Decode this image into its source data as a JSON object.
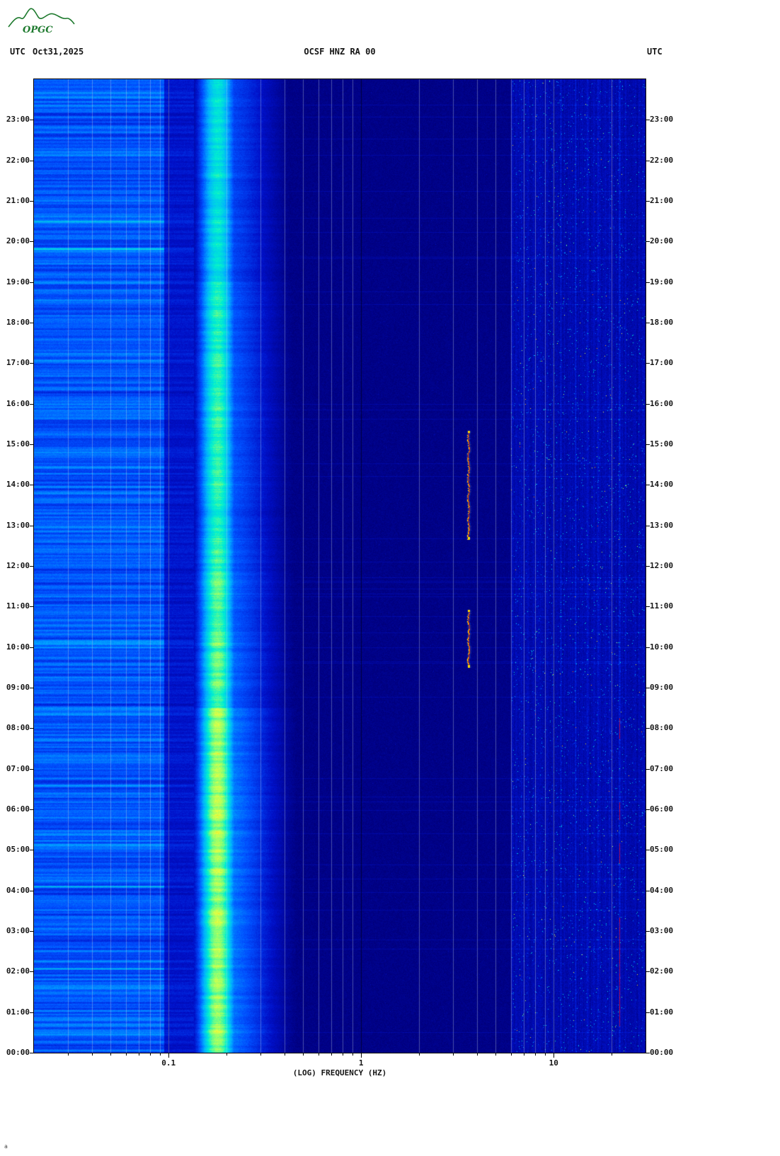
{
  "header": {
    "utc_left": "UTC",
    "date": "Oct31,2025",
    "title": "OCSF HNZ RA 00",
    "utc_right": "UTC"
  },
  "logo": {
    "text": "OPGC"
  },
  "footer": {
    "mark": "a"
  },
  "colors": {
    "background": "#ffffff",
    "text": "#151515",
    "frame": "#000000",
    "logo_green": "#1e7a2e",
    "grid_minor": "rgba(190,205,225,0.38)",
    "grid_decade": "rgba(125,135,155,0.55)",
    "grid_1hz": "rgba(0,0,10,0.6)"
  },
  "axes": {
    "x_label": "(LOG) FREQUENCY (HZ)",
    "x_major_ticks": [
      {
        "hz": 0.1,
        "label": "0.1"
      },
      {
        "hz": 1,
        "label": "1"
      },
      {
        "hz": 10,
        "label": "10"
      }
    ],
    "y_left_labels": [
      "23:00",
      "22:00",
      "21:00",
      "20:00",
      "19:00",
      "18:00",
      "17:00",
      "16:00",
      "15:00",
      "14:00",
      "13:00",
      "12:00",
      "11:00",
      "10:00",
      "09:00",
      "08:00",
      "07:00",
      "06:00",
      "05:00",
      "04:00",
      "03:00",
      "02:00",
      "01:00",
      "00:00"
    ],
    "y_right_labels": [
      "23:00",
      "22:00",
      "21:00",
      "20:00",
      "19:00",
      "18:00",
      "17:00",
      "16:00",
      "15:00",
      "14:00",
      "13:00",
      "12:00",
      "11:00",
      "10:00",
      "09:00",
      "08:00",
      "07:00",
      "06:00",
      "05:00",
      "04:00",
      "03:00",
      "02:00",
      "01:00",
      "00:00"
    ]
  },
  "chart_data": {
    "type": "heatmap",
    "subtype": "seismic spectrogram",
    "station": "OCSF HNZ RA 00",
    "date": "Oct31,2025",
    "timezone": "UTC",
    "time_axis": {
      "range_hours": [
        0,
        24
      ],
      "direction": "bottom-to-top",
      "tick_step_hours": 1
    },
    "freq_axis": {
      "range_hz": [
        0.02,
        30
      ],
      "scale": "log10",
      "major_ticks_hz": [
        0.1,
        1,
        10
      ],
      "minor_gridlines_hz": [
        0.03,
        0.04,
        0.05,
        0.06,
        0.07,
        0.08,
        0.09,
        0.2,
        0.3,
        0.4,
        0.5,
        0.6,
        0.7,
        0.8,
        0.9,
        2,
        3,
        4,
        5,
        6,
        7,
        8,
        9,
        20
      ]
    },
    "colormap": "jet",
    "background_level": 0.115,
    "bands": [
      {
        "name": "long-period noise",
        "f_lo_hz": 0.02,
        "f_hi_hz": 0.095,
        "level": 0.4,
        "texture": "horizontal blue streaks"
      },
      {
        "name": "gap",
        "f_lo_hz": 0.095,
        "f_hi_hz": 0.135,
        "level": 0.26
      },
      {
        "name": "secondary microseism peak",
        "f_lo_hz": 0.135,
        "f_hi_hz": 0.26,
        "center_hz": 0.18,
        "level_by_time": [
          {
            "t_lo": 0,
            "t_hi": 8.5,
            "amp": 0.82
          },
          {
            "t_lo": 8.5,
            "t_hi": 12,
            "amp": 0.76
          },
          {
            "t_lo": 12,
            "t_hi": 19,
            "amp": 0.72
          },
          {
            "t_lo": 19,
            "t_hi": 24,
            "amp": 0.66
          }
        ],
        "description": "bright cyan-green band, yellowest 00:00-08:00"
      },
      {
        "name": "microseism tail",
        "f_lo_hz": 0.26,
        "f_hi_hz": 0.6,
        "level_profile": "decays from 0.45 to background"
      },
      {
        "name": "quiet mid-band",
        "f_lo_hz": 0.6,
        "f_hi_hz": 6,
        "level": 0.115
      },
      {
        "name": "high-frequency noise",
        "f_lo_hz": 6,
        "f_hi_hz": 30,
        "level": 0.17,
        "texture": "speckled light-blue grains"
      }
    ],
    "bright_columns_hz": [
      {
        "hz": 10.9,
        "boost": 0.05
      },
      {
        "hz": 13,
        "boost": 0.06
      },
      {
        "hz": 15,
        "boost": 0.05
      },
      {
        "hz": 17,
        "boost": 0.06
      },
      {
        "hz": 19.5,
        "boost": 0.05
      },
      {
        "hz": 22,
        "boost": 0.1
      }
    ],
    "events": [
      {
        "kind": "tremor-line",
        "f_hz": 3.6,
        "t_start": "12:40",
        "t_end": "15:20",
        "core_color": "#ff3a00",
        "edge_color": "#ffdc00"
      },
      {
        "kind": "tremor-line",
        "f_hz": 3.6,
        "t_start": "09:30",
        "t_end": "10:55",
        "core_color": "#ff3a00",
        "edge_color": "#ffdc00"
      },
      {
        "kind": "vertical-line-segments",
        "f_hz": 22,
        "color": "#e00020",
        "segments": [
          [
            "00:40",
            "03:20"
          ],
          [
            "04:40",
            "05:10"
          ],
          [
            "05:45",
            "06:10"
          ],
          [
            "07:45",
            "08:15"
          ]
        ]
      }
    ],
    "prng_seed": 20251031
  }
}
